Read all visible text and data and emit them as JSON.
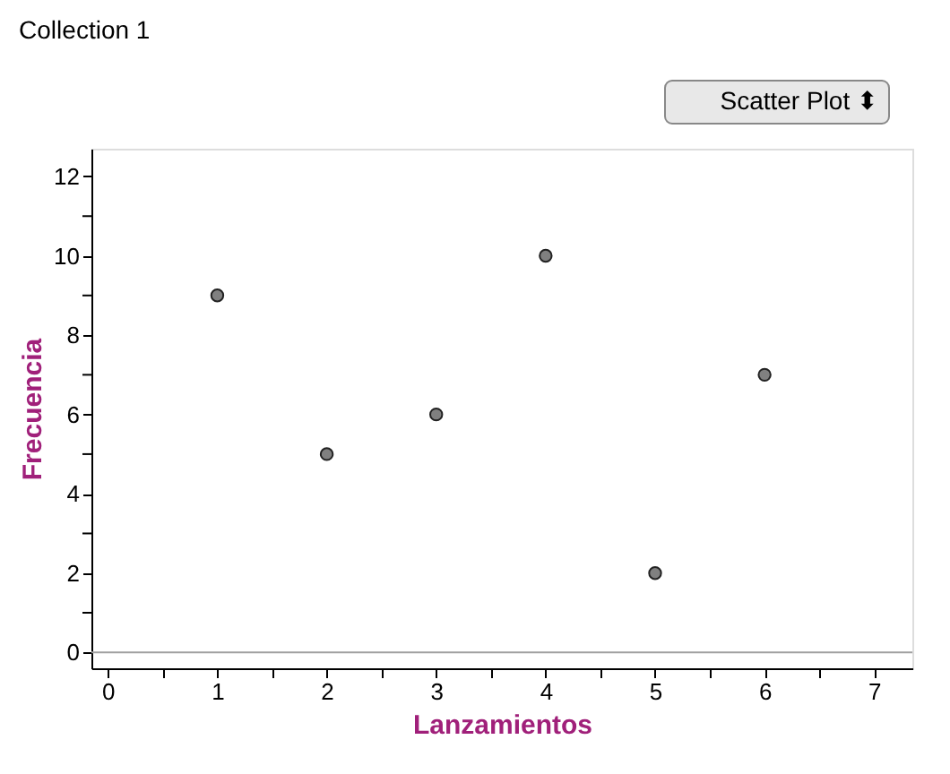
{
  "chart_data": {
    "type": "scatter",
    "title": "Collection 1",
    "xlabel": "Lanzamientos",
    "ylabel": "Frecuencia",
    "x": [
      1,
      2,
      3,
      4,
      5,
      6
    ],
    "series": [
      {
        "color": "#808080",
        "values": [
          9,
          5,
          6,
          10,
          2,
          7
        ]
      }
    ],
    "marker": "circle",
    "xlim": [
      -0.15,
      7.35
    ],
    "ylim": [
      -0.4,
      12.7
    ],
    "xticks": [
      0,
      {
        "value": 0.5,
        "label": null
      },
      1,
      {
        "value": 1.5,
        "label": null
      },
      2,
      {
        "value": 2.5,
        "label": null
      },
      3,
      {
        "value": 3.5,
        "label": null
      },
      4,
      {
        "value": 4.5,
        "label": null
      },
      5,
      {
        "value": 5.5,
        "label": null
      },
      6,
      {
        "value": 6.5,
        "label": null
      },
      7
    ],
    "yticks": [
      0,
      {
        "value": 1,
        "label": null
      },
      2,
      {
        "value": 3,
        "label": null
      },
      4,
      {
        "value": 5,
        "label": null
      },
      6,
      {
        "value": 7,
        "label": null
      },
      8,
      {
        "value": 9,
        "label": null
      },
      10,
      {
        "value": 11,
        "label": null
      },
      12
    ],
    "ref_lines": [
      {
        "axis": "y",
        "value": 0,
        "color": "#a0a0a0"
      }
    ],
    "annotations": [
      "Scatter Plot ⬍"
    ],
    "grid": false
  }
}
